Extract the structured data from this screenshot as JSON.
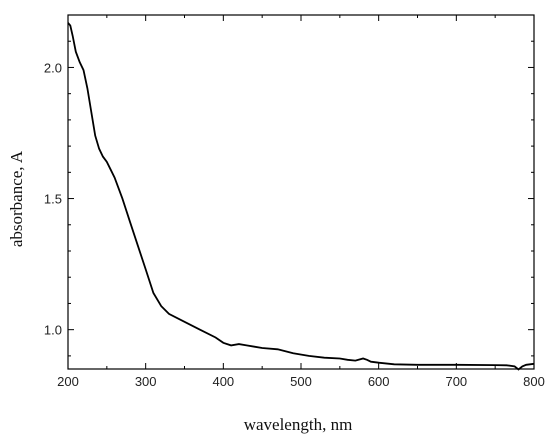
{
  "chart_data": {
    "type": "line",
    "title": "",
    "xlabel": "wavelength, nm",
    "ylabel": "absorbance, A",
    "xlim": [
      200,
      800
    ],
    "ylim": [
      0.85,
      2.2
    ],
    "x_ticks": [
      200,
      300,
      400,
      500,
      600,
      700,
      800
    ],
    "x_tick_labels": [
      "200",
      "300",
      "400",
      "500",
      "600",
      "700",
      "800"
    ],
    "y_ticks": [
      1.0,
      1.5,
      2.0
    ],
    "y_tick_labels": [
      "1.0",
      "1.5",
      "2.0"
    ],
    "grid": false,
    "legend": "none",
    "line_color": "#000000",
    "series": [
      {
        "x": [
          200,
          203,
          206,
          210,
          215,
          220,
          225,
          230,
          235,
          240,
          245,
          250,
          255,
          260,
          270,
          280,
          290,
          300,
          310,
          320,
          330,
          350,
          370,
          390,
          400,
          410,
          420,
          430,
          440,
          450,
          470,
          490,
          510,
          530,
          550,
          560,
          570,
          580,
          585,
          590,
          600,
          620,
          650,
          700,
          750,
          765,
          775,
          780,
          785,
          790,
          800
        ],
        "y": [
          2.17,
          2.16,
          2.12,
          2.06,
          2.02,
          1.99,
          1.92,
          1.83,
          1.74,
          1.69,
          1.66,
          1.64,
          1.61,
          1.58,
          1.5,
          1.41,
          1.32,
          1.23,
          1.14,
          1.09,
          1.06,
          1.03,
          1.0,
          0.97,
          0.95,
          0.94,
          0.945,
          0.94,
          0.935,
          0.93,
          0.925,
          0.91,
          0.9,
          0.893,
          0.89,
          0.885,
          0.882,
          0.89,
          0.885,
          0.878,
          0.874,
          0.868,
          0.866,
          0.866,
          0.865,
          0.864,
          0.86,
          0.848,
          0.86,
          0.866,
          0.87
        ]
      }
    ]
  }
}
